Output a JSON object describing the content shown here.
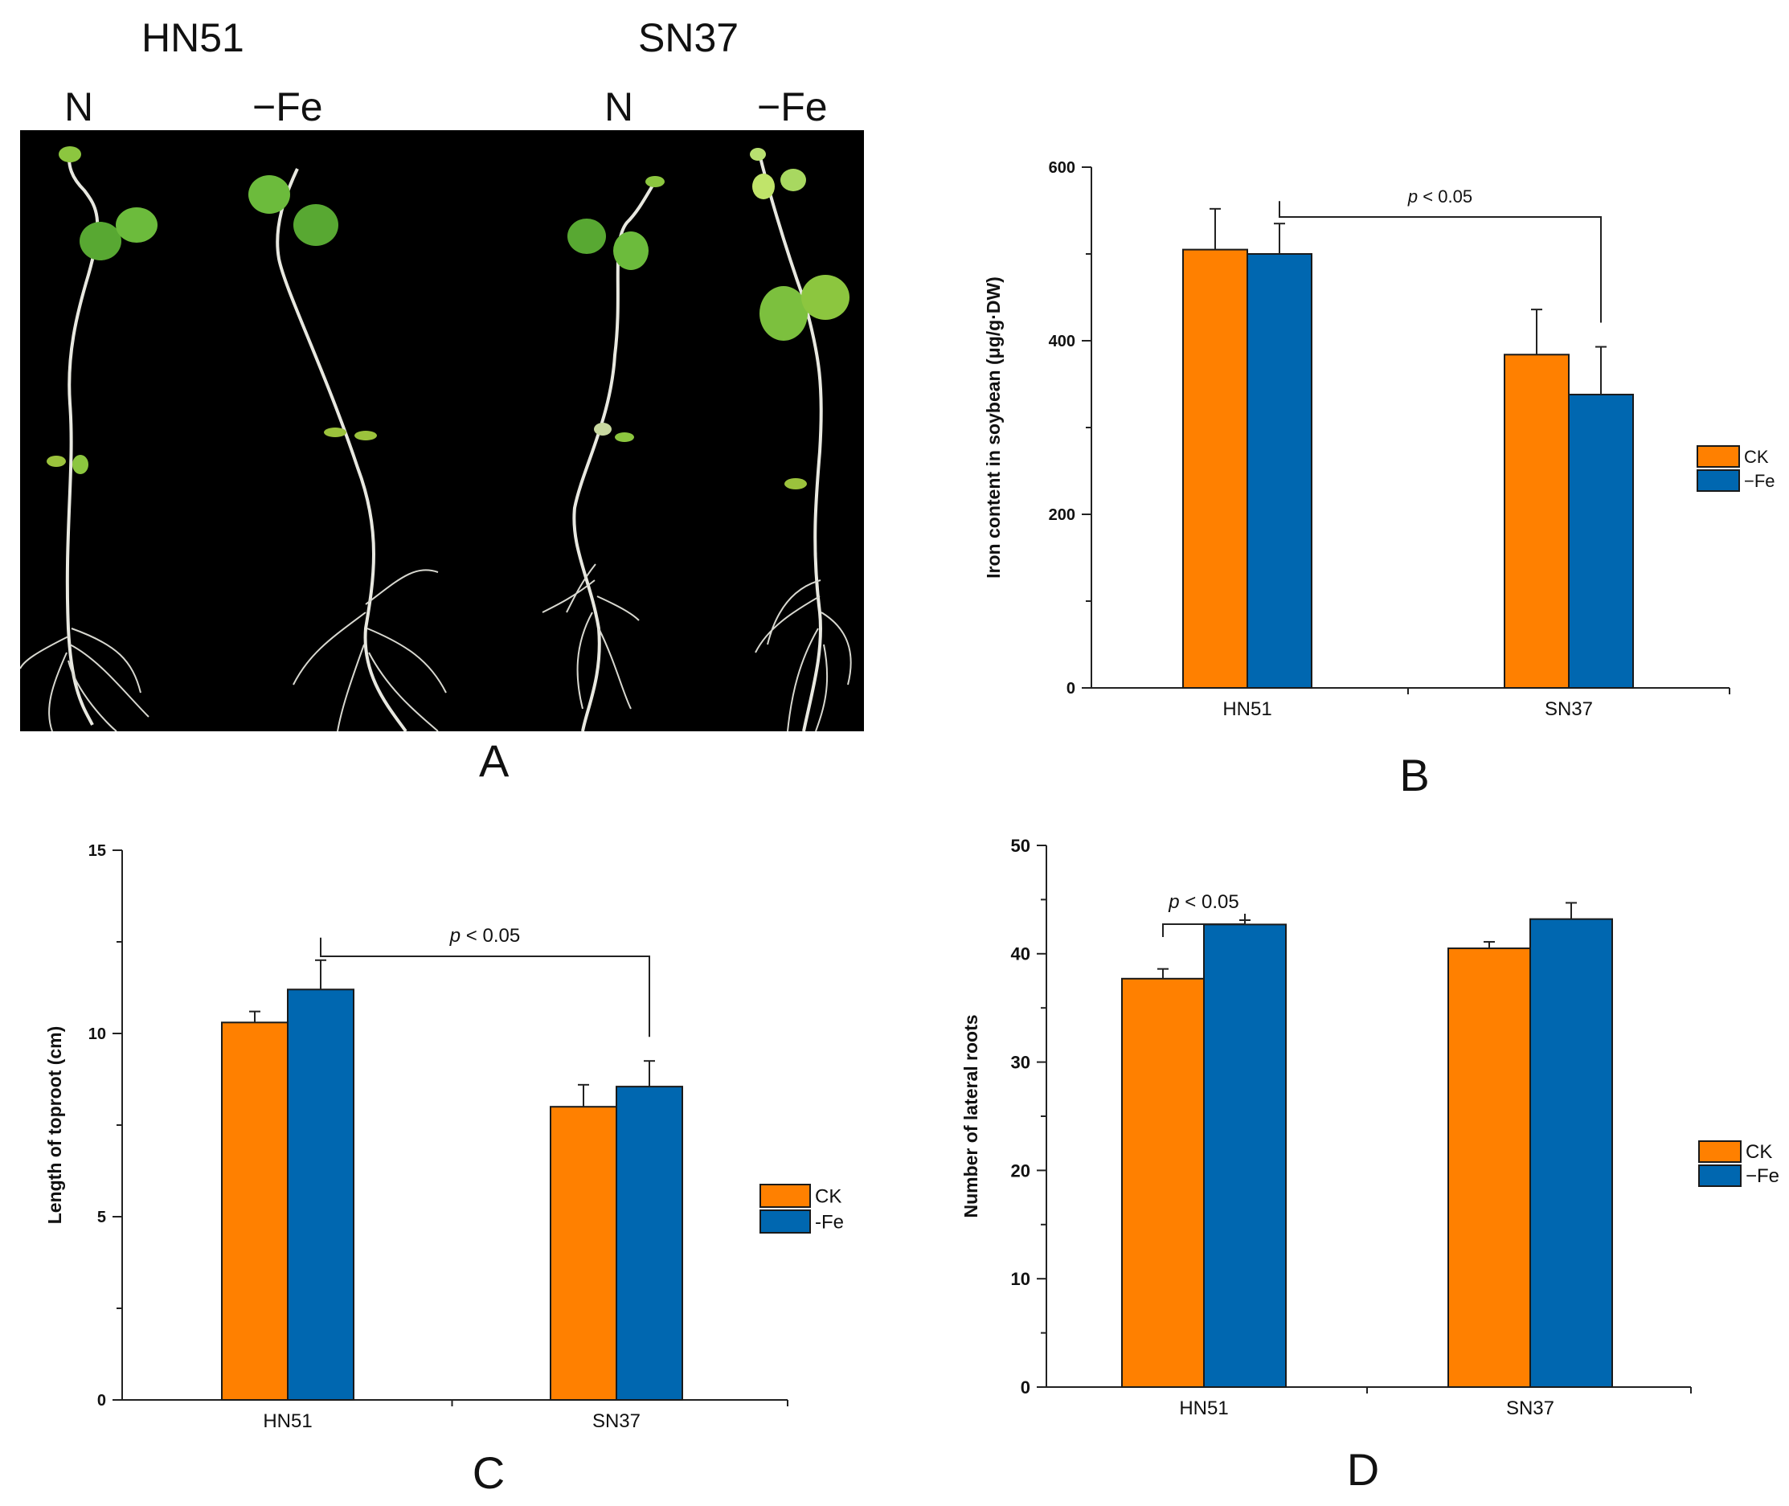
{
  "panel_a": {
    "letter": "A",
    "groups": [
      {
        "cultivar": "HN51",
        "treatments": [
          "N",
          "−Fe"
        ]
      },
      {
        "cultivar": "SN37",
        "treatments": [
          "N",
          "−Fe"
        ]
      }
    ]
  },
  "colors": {
    "ck": "#ff8000",
    "fe": "#0067b0",
    "edge": "#1a1a1a"
  },
  "chart_data": [
    {
      "id": "B",
      "letter": "B",
      "type": "bar",
      "categories": [
        "HN51",
        "SN37"
      ],
      "series": [
        {
          "name": "CK",
          "values": [
            505,
            384
          ],
          "errors": [
            47,
            52
          ]
        },
        {
          "name": "−Fe",
          "values": [
            500,
            338
          ],
          "errors": [
            35,
            55
          ]
        }
      ],
      "ylabel": "Iron content in soybean (μg/g·DW)",
      "ylim": [
        0,
        600
      ],
      "yticks": [
        0,
        200,
        400,
        600
      ],
      "yticklabels": [
        "0",
        "200",
        "400",
        "600"
      ],
      "annotation": {
        "text": "< 0.05",
        "italic": "p",
        "from": [
          "HN51",
          1
        ],
        "to": [
          "SN37",
          1
        ]
      },
      "legend": [
        "CK",
        "−Fe"
      ]
    },
    {
      "id": "C",
      "letter": "C",
      "type": "bar",
      "categories": [
        "HN51",
        "SN37"
      ],
      "series": [
        {
          "name": "CK",
          "values": [
            10.3,
            8.0
          ],
          "errors": [
            0.3,
            0.6
          ]
        },
        {
          "name": "-Fe",
          "values": [
            11.2,
            8.55
          ],
          "errors": [
            0.8,
            0.7
          ]
        }
      ],
      "ylabel": "Length of toproot (cm)",
      "ylim": [
        0,
        15
      ],
      "yticks": [
        0,
        5,
        10,
        15
      ],
      "yticklabels": [
        "0",
        "5",
        "10",
        "15"
      ],
      "annotation": {
        "text": "< 0.05",
        "italic": "p",
        "from": [
          "HN51",
          1
        ],
        "to": [
          "SN37",
          1
        ]
      },
      "legend": [
        "CK",
        "-Fe"
      ]
    },
    {
      "id": "D",
      "letter": "D",
      "type": "bar",
      "categories": [
        "HN51",
        "SN37"
      ],
      "series": [
        {
          "name": "CK",
          "values": [
            37.7,
            40.5
          ],
          "errors": [
            0.9,
            0.6
          ]
        },
        {
          "name": "−Fe",
          "values": [
            42.7,
            43.2
          ],
          "errors": [
            0.4,
            1.5
          ]
        }
      ],
      "ylabel": "Number of lateral roots",
      "ylim": [
        0,
        50
      ],
      "yticks": [
        0,
        10,
        20,
        30,
        40,
        50
      ],
      "yticklabels": [
        "0",
        "10",
        "20",
        "30",
        "40",
        "50"
      ],
      "annotation": {
        "text": "< 0.05",
        "italic": "p",
        "from": [
          "HN51",
          0
        ],
        "to": [
          "HN51",
          1
        ]
      },
      "legend": [
        "CK",
        "−Fe"
      ]
    }
  ]
}
